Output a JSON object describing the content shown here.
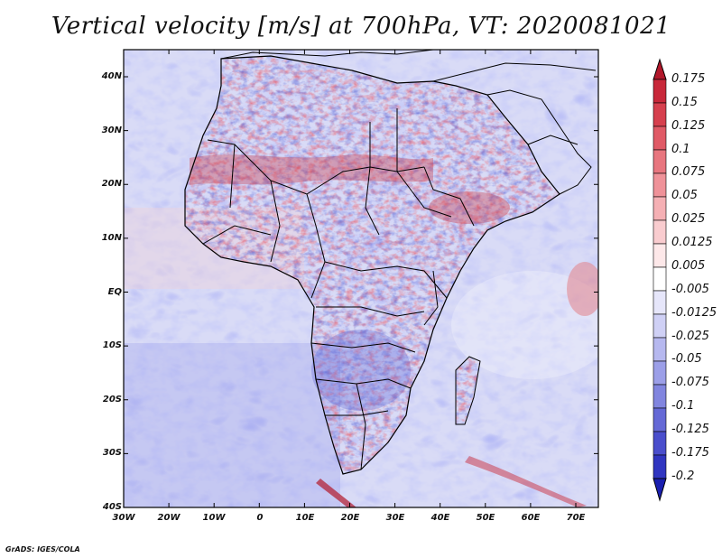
{
  "title": "Vertical velocity [m/s] at 700hPa, VT: 2020081021",
  "credit": "GrADS: IGES/COLA",
  "map": {
    "region": "Africa",
    "variable": "vertical velocity",
    "units": "m/s",
    "level": "700hPa",
    "valid_time": "2020081021",
    "lat_labels": [
      "40N",
      "30N",
      "20N",
      "10N",
      "EQ",
      "10S",
      "20S",
      "30S",
      "40S"
    ],
    "lon_labels": [
      "30W",
      "20W",
      "10W",
      "0",
      "10E",
      "20E",
      "30E",
      "40E",
      "50E",
      "60E",
      "70E"
    ]
  },
  "colorbar": {
    "labels": [
      "0.175",
      "0.15",
      "0.125",
      "0.1",
      "0.075",
      "0.05",
      "0.025",
      "0.0125",
      "0.005",
      "-0.005",
      "-0.0125",
      "-0.025",
      "-0.05",
      "-0.075",
      "-0.1",
      "-0.125",
      "-0.175",
      "-0.2"
    ],
    "colors": [
      "#b2182b",
      "#c8283a",
      "#d6404e",
      "#e05a66",
      "#e8767f",
      "#ef9299",
      "#f5b0b4",
      "#f9cccf",
      "#fde8e9",
      "#ffffff",
      "#e6e6fa",
      "#cfd0f5",
      "#b6b8ef",
      "#9c9fe8",
      "#8185df",
      "#6569d6",
      "#4a4ecc",
      "#3035c0",
      "#1a1fb0"
    ]
  }
}
